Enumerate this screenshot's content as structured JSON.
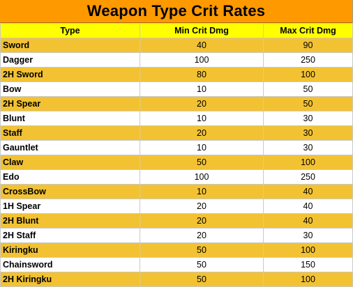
{
  "title": "Weapon Type Crit Rates",
  "columns": [
    "Type",
    "Min Crit Dmg",
    "Max Crit Dmg"
  ],
  "rows": [
    {
      "type": "Sword",
      "min": "40",
      "max": "90"
    },
    {
      "type": "Dagger",
      "min": "100",
      "max": "250"
    },
    {
      "type": "2H Sword",
      "min": "80",
      "max": "100"
    },
    {
      "type": "Bow",
      "min": "10",
      "max": "50"
    },
    {
      "type": "2H Spear",
      "min": "20",
      "max": "50"
    },
    {
      "type": "Blunt",
      "min": "10",
      "max": "30"
    },
    {
      "type": "Staff",
      "min": "20",
      "max": "30"
    },
    {
      "type": "Gauntlet",
      "min": "10",
      "max": "30"
    },
    {
      "type": "Claw",
      "min": "50",
      "max": "100"
    },
    {
      "type": "Edo",
      "min": "100",
      "max": "250"
    },
    {
      "type": "CrossBow",
      "min": "10",
      "max": "40"
    },
    {
      "type": "1H Spear",
      "min": "20",
      "max": "40"
    },
    {
      "type": "2H Blunt",
      "min": "20",
      "max": "40"
    },
    {
      "type": "2H Staff",
      "min": "20",
      "max": "30"
    },
    {
      "type": "Kiringku",
      "min": "50",
      "max": "100"
    },
    {
      "type": "Chainsword",
      "min": "50",
      "max": "150"
    },
    {
      "type": "2H Kiringku",
      "min": "50",
      "max": "100"
    }
  ],
  "colors": {
    "title_background": "#ff9900",
    "header_background": "#ffff00",
    "odd_row": "#f2c233",
    "even_row": "#ffffff"
  }
}
